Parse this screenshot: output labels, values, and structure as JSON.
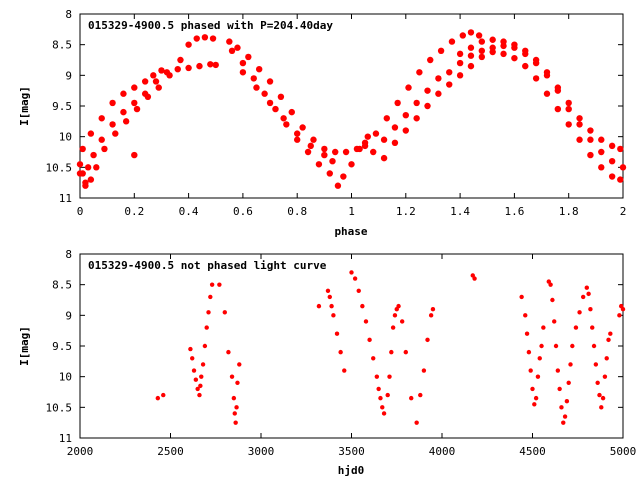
{
  "chart_data": [
    {
      "type": "scatter",
      "title": "015329-4900.5 phased with P=204.40day",
      "xlabel": "phase",
      "ylabel": "I[mag]",
      "xlim": [
        0,
        2
      ],
      "ylim": [
        8,
        11
      ],
      "y_inverted": true,
      "xticks": [
        "0",
        "0.2",
        "0.4",
        "0.6",
        "0.8",
        "1",
        "1.2",
        "1.4",
        "1.6",
        "1.8",
        "2"
      ],
      "yticks": [
        "8",
        "8.5",
        "9",
        "9.5",
        "10",
        "10.5",
        "11"
      ],
      "marker_color": "#ff0000",
      "series": [
        {
          "points": [
            [
              0.0,
              10.45
            ],
            [
              0.01,
              10.6
            ],
            [
              0.02,
              10.75
            ],
            [
              0.03,
              10.5
            ],
            [
              0.05,
              10.3
            ],
            [
              0.08,
              10.05
            ],
            [
              0.12,
              9.8
            ],
            [
              0.16,
              9.6
            ],
            [
              0.2,
              9.45
            ],
            [
              0.24,
              9.3
            ],
            [
              0.28,
              9.1
            ],
            [
              0.32,
              8.95
            ],
            [
              0.36,
              8.9
            ],
            [
              0.4,
              8.88
            ],
            [
              0.44,
              8.85
            ],
            [
              0.48,
              8.82
            ],
            [
              0.5,
              8.83
            ]
          ]
        },
        {
          "points": [
            [
              0.0,
              10.6
            ],
            [
              0.02,
              10.8
            ],
            [
              0.04,
              10.7
            ],
            [
              0.06,
              10.5
            ],
            [
              0.09,
              10.2
            ],
            [
              0.13,
              9.95
            ],
            [
              0.17,
              9.75
            ],
            [
              0.21,
              9.55
            ],
            [
              0.25,
              9.35
            ],
            [
              0.29,
              9.2
            ],
            [
              0.33,
              9.0
            ],
            [
              0.37,
              8.75
            ],
            [
              0.4,
              8.5
            ],
            [
              0.43,
              8.4
            ],
            [
              0.46,
              8.38
            ],
            [
              0.49,
              8.4
            ]
          ]
        },
        {
          "points": [
            [
              0.01,
              10.2
            ],
            [
              0.04,
              9.95
            ],
            [
              0.08,
              9.7
            ],
            [
              0.12,
              9.45
            ],
            [
              0.16,
              9.3
            ],
            [
              0.2,
              9.2
            ],
            [
              0.24,
              9.1
            ],
            [
              0.27,
              9.0
            ],
            [
              0.3,
              8.92
            ],
            [
              0.2,
              10.3
            ]
          ]
        },
        {
          "points": [
            [
              0.55,
              8.45
            ],
            [
              0.58,
              8.55
            ],
            [
              0.62,
              8.7
            ],
            [
              0.66,
              8.9
            ],
            [
              0.7,
              9.1
            ],
            [
              0.74,
              9.35
            ],
            [
              0.78,
              9.6
            ],
            [
              0.82,
              9.85
            ],
            [
              0.86,
              10.05
            ],
            [
              0.9,
              10.2
            ],
            [
              0.94,
              10.25
            ],
            [
              0.98,
              10.25
            ],
            [
              1.02,
              10.2
            ],
            [
              1.05,
              10.1
            ]
          ]
        },
        {
          "points": [
            [
              0.56,
              8.6
            ],
            [
              0.6,
              8.8
            ],
            [
              0.64,
              9.05
            ],
            [
              0.68,
              9.3
            ],
            [
              0.72,
              9.55
            ],
            [
              0.76,
              9.8
            ],
            [
              0.8,
              10.05
            ],
            [
              0.84,
              10.25
            ],
            [
              0.88,
              10.45
            ],
            [
              0.92,
              10.6
            ],
            [
              0.95,
              10.8
            ],
            [
              0.97,
              10.65
            ],
            [
              1.0,
              10.45
            ],
            [
              1.03,
              10.2
            ],
            [
              1.06,
              10.0
            ]
          ]
        },
        {
          "points": [
            [
              0.6,
              8.95
            ],
            [
              0.65,
              9.2
            ],
            [
              0.7,
              9.45
            ],
            [
              0.75,
              9.7
            ],
            [
              0.8,
              9.95
            ],
            [
              0.85,
              10.15
            ],
            [
              0.9,
              10.3
            ],
            [
              0.93,
              10.4
            ]
          ]
        },
        {
          "points": [
            [
              1.05,
              10.15
            ],
            [
              1.09,
              9.95
            ],
            [
              1.13,
              9.7
            ],
            [
              1.17,
              9.45
            ],
            [
              1.21,
              9.2
            ],
            [
              1.25,
              8.95
            ],
            [
              1.29,
              8.75
            ],
            [
              1.33,
              8.6
            ],
            [
              1.37,
              8.45
            ],
            [
              1.41,
              8.35
            ],
            [
              1.44,
              8.3
            ],
            [
              1.47,
              8.35
            ]
          ]
        },
        {
          "points": [
            [
              1.08,
              10.25
            ],
            [
              1.12,
              10.05
            ],
            [
              1.16,
              9.85
            ],
            [
              1.2,
              9.65
            ],
            [
              1.24,
              9.45
            ],
            [
              1.28,
              9.25
            ],
            [
              1.32,
              9.05
            ],
            [
              1.36,
              8.95
            ],
            [
              1.4,
              8.8
            ],
            [
              1.44,
              8.68
            ],
            [
              1.48,
              8.6
            ],
            [
              1.52,
              8.55
            ],
            [
              1.56,
              8.52
            ],
            [
              1.6,
              8.55
            ],
            [
              1.64,
              8.65
            ],
            [
              1.68,
              8.8
            ],
            [
              1.72,
              9.0
            ],
            [
              1.76,
              9.25
            ],
            [
              1.8,
              9.55
            ],
            [
              1.84,
              9.8
            ],
            [
              1.88,
              10.05
            ],
            [
              1.92,
              10.25
            ],
            [
              1.96,
              10.4
            ],
            [
              2.0,
              10.5
            ]
          ]
        },
        {
          "points": [
            [
              1.12,
              10.35
            ],
            [
              1.16,
              10.1
            ],
            [
              1.2,
              9.9
            ],
            [
              1.24,
              9.7
            ],
            [
              1.28,
              9.5
            ],
            [
              1.32,
              9.3
            ],
            [
              1.36,
              9.15
            ],
            [
              1.4,
              9.0
            ],
            [
              1.44,
              8.85
            ],
            [
              1.48,
              8.7
            ],
            [
              1.52,
              8.62
            ],
            [
              1.56,
              8.65
            ],
            [
              1.6,
              8.72
            ],
            [
              1.64,
              8.85
            ],
            [
              1.68,
              9.05
            ],
            [
              1.72,
              9.3
            ],
            [
              1.76,
              9.55
            ],
            [
              1.8,
              9.8
            ],
            [
              1.84,
              10.05
            ],
            [
              1.88,
              10.3
            ],
            [
              1.92,
              10.5
            ],
            [
              1.96,
              10.65
            ],
            [
              1.99,
              10.7
            ]
          ]
        },
        {
          "points": [
            [
              1.4,
              8.65
            ],
            [
              1.44,
              8.55
            ],
            [
              1.48,
              8.45
            ],
            [
              1.52,
              8.42
            ],
            [
              1.56,
              8.45
            ],
            [
              1.6,
              8.5
            ],
            [
              1.64,
              8.6
            ],
            [
              1.68,
              8.75
            ],
            [
              1.72,
              8.95
            ],
            [
              1.76,
              9.2
            ],
            [
              1.8,
              9.45
            ],
            [
              1.84,
              9.7
            ],
            [
              1.88,
              9.9
            ],
            [
              1.92,
              10.05
            ],
            [
              1.96,
              10.15
            ],
            [
              1.99,
              10.2
            ]
          ]
        }
      ]
    },
    {
      "type": "scatter",
      "title": "015329-4900.5 not phased light curve",
      "xlabel": "hjd0",
      "ylabel": "I[mag]",
      "xlim": [
        2000,
        5000
      ],
      "ylim": [
        8,
        11
      ],
      "y_inverted": true,
      "xticks": [
        "2000",
        "2500",
        "3000",
        "3500",
        "4000",
        "4500",
        "5000"
      ],
      "yticks": [
        "8",
        "8.5",
        "9",
        "9.5",
        "10",
        "10.5",
        "11"
      ],
      "marker_color": "#ff0000",
      "series": [
        {
          "points": [
            [
              2430,
              10.35
            ],
            [
              2460,
              10.3
            ],
            [
              2610,
              9.55
            ],
            [
              2620,
              9.7
            ],
            [
              2630,
              9.9
            ],
            [
              2640,
              10.05
            ],
            [
              2650,
              10.2
            ],
            [
              2660,
              10.3
            ],
            [
              2665,
              10.15
            ],
            [
              2670,
              10.0
            ],
            [
              2680,
              9.8
            ],
            [
              2690,
              9.5
            ],
            [
              2700,
              9.2
            ],
            [
              2710,
              8.95
            ],
            [
              2720,
              8.7
            ],
            [
              2730,
              8.5
            ],
            [
              2770,
              8.5
            ],
            [
              2800,
              8.95
            ],
            [
              2820,
              9.6
            ],
            [
              2840,
              10.0
            ],
            [
              2850,
              10.35
            ],
            [
              2855,
              10.6
            ],
            [
              2860,
              10.75
            ],
            [
              2865,
              10.5
            ],
            [
              2870,
              10.1
            ],
            [
              2880,
              9.8
            ]
          ]
        },
        {
          "points": [
            [
              3320,
              8.85
            ],
            [
              3370,
              8.6
            ],
            [
              3380,
              8.7
            ],
            [
              3390,
              8.85
            ],
            [
              3400,
              9.0
            ],
            [
              3420,
              9.3
            ],
            [
              3440,
              9.6
            ],
            [
              3460,
              9.9
            ],
            [
              3500,
              8.3
            ],
            [
              3520,
              8.4
            ],
            [
              3540,
              8.6
            ],
            [
              3560,
              8.85
            ],
            [
              3580,
              9.1
            ],
            [
              3600,
              9.4
            ],
            [
              3620,
              9.7
            ],
            [
              3640,
              10.0
            ],
            [
              3650,
              10.2
            ],
            [
              3660,
              10.35
            ],
            [
              3670,
              10.5
            ],
            [
              3680,
              10.6
            ],
            [
              3700,
              10.3
            ],
            [
              3710,
              10.0
            ],
            [
              3720,
              9.6
            ],
            [
              3730,
              9.2
            ],
            [
              3740,
              9.0
            ],
            [
              3750,
              8.9
            ],
            [
              3760,
              8.85
            ],
            [
              3780,
              9.1
            ],
            [
              3800,
              9.6
            ],
            [
              3830,
              10.35
            ],
            [
              3860,
              10.75
            ],
            [
              3880,
              10.3
            ],
            [
              3900,
              9.9
            ],
            [
              3920,
              9.4
            ],
            [
              3940,
              9.0
            ],
            [
              3950,
              8.9
            ],
            [
              4170,
              8.35
            ],
            [
              4180,
              8.4
            ]
          ]
        },
        {
          "points": [
            [
              4440,
              8.7
            ],
            [
              4460,
              9.0
            ],
            [
              4470,
              9.3
            ],
            [
              4480,
              9.6
            ],
            [
              4490,
              9.9
            ],
            [
              4500,
              10.2
            ],
            [
              4510,
              10.45
            ],
            [
              4520,
              10.35
            ],
            [
              4530,
              10.0
            ],
            [
              4540,
              9.7
            ],
            [
              4550,
              9.5
            ],
            [
              4560,
              9.2
            ],
            [
              4590,
              8.45
            ],
            [
              4600,
              8.5
            ],
            [
              4610,
              8.75
            ],
            [
              4620,
              9.1
            ],
            [
              4630,
              9.5
            ],
            [
              4640,
              9.9
            ],
            [
              4650,
              10.2
            ],
            [
              4660,
              10.5
            ],
            [
              4670,
              10.75
            ],
            [
              4680,
              10.65
            ],
            [
              4690,
              10.4
            ],
            [
              4700,
              10.1
            ],
            [
              4710,
              9.8
            ],
            [
              4720,
              9.5
            ],
            [
              4740,
              9.2
            ],
            [
              4760,
              8.95
            ],
            [
              4780,
              8.7
            ],
            [
              4800,
              8.55
            ],
            [
              4810,
              8.65
            ],
            [
              4820,
              8.9
            ],
            [
              4830,
              9.2
            ],
            [
              4840,
              9.5
            ],
            [
              4850,
              9.8
            ],
            [
              4860,
              10.1
            ],
            [
              4870,
              10.3
            ],
            [
              4880,
              10.5
            ],
            [
              4890,
              10.35
            ],
            [
              4900,
              10.0
            ],
            [
              4910,
              9.7
            ],
            [
              4920,
              9.4
            ],
            [
              4930,
              9.3
            ],
            [
              4980,
              9.0
            ],
            [
              4990,
              8.85
            ],
            [
              5000,
              8.9
            ]
          ]
        }
      ]
    }
  ]
}
